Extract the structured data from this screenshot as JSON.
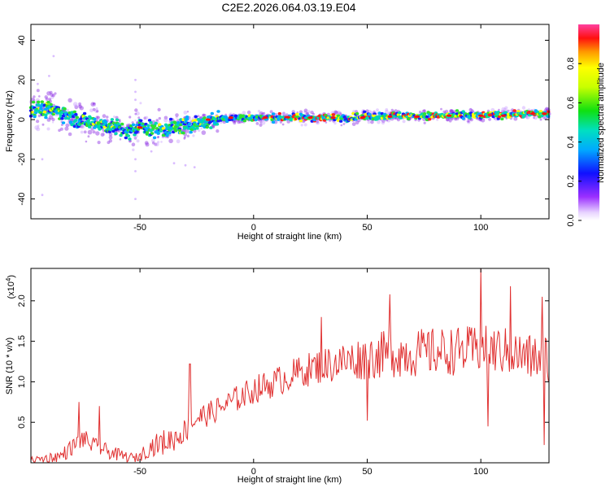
{
  "title": "C2E2.2026.064.03.19.E04",
  "chart_data": [
    {
      "type": "heatmap",
      "name": "spectrogram",
      "xlabel": "Height of straight line (km)",
      "ylabel": "Frequency (Hz)",
      "xlim": [
        -98,
        130
      ],
      "ylim": [
        -50,
        48
      ],
      "xticks": [
        -50,
        0,
        50,
        100
      ],
      "yticks": [
        -40,
        -20,
        0,
        20,
        40
      ],
      "ridge": {
        "x": [
          -98,
          -90,
          -85,
          -80,
          -75,
          -70,
          -65,
          -60,
          -55,
          -52,
          -50,
          -45,
          -40,
          -35,
          -30,
          -25,
          -20,
          -15,
          -10,
          -5,
          0,
          10,
          20,
          30,
          40,
          50,
          60,
          70,
          80,
          90,
          100,
          110,
          120,
          130
        ],
        "y": [
          6,
          5,
          4,
          1,
          -1,
          -1,
          -3,
          -4,
          -7,
          -5,
          -3,
          -5,
          -5,
          -4,
          -3,
          -2,
          -1,
          0.5,
          1,
          1,
          1,
          1,
          1,
          1,
          1,
          1.5,
          2,
          2,
          2,
          2,
          2,
          2.5,
          3,
          3
        ]
      },
      "colorbar": {
        "label": "Normalized spectral amplitude",
        "range": [
          0.0,
          1.0
        ],
        "ticks": [
          0.0,
          0.2,
          0.4,
          0.6,
          0.8
        ],
        "tick_labels": [
          "0.0",
          "0.2",
          "0.4",
          "0.6",
          "0.8"
        ]
      }
    },
    {
      "type": "line",
      "name": "snr",
      "xlabel": "Height of straight line (km)",
      "ylabel": "SNR (10 * v/v)",
      "scale_label": "(x10",
      "scale_exp": "4",
      "scale_close": ")",
      "xlim": [
        -98,
        130
      ],
      "ylim": [
        0,
        2.4
      ],
      "xticks": [
        -50,
        0,
        50,
        100
      ],
      "yticks": [
        0.5,
        1.0,
        1.5,
        2.0
      ],
      "ytick_labels": [
        "0.5",
        "1.0",
        "1.5",
        "2.0"
      ],
      "color": "#e03030",
      "trend": {
        "x": [
          -98,
          -85,
          -75,
          -70,
          -60,
          -52,
          -45,
          -35,
          -30,
          -25,
          -20,
          -10,
          0,
          10,
          20,
          30,
          40,
          50,
          60,
          70,
          80,
          90,
          100,
          110,
          120,
          130
        ],
        "y": [
          0.03,
          0.08,
          0.3,
          0.2,
          0.1,
          0.05,
          0.2,
          0.3,
          0.4,
          0.55,
          0.6,
          0.75,
          0.9,
          1.0,
          1.12,
          1.2,
          1.25,
          1.3,
          1.35,
          1.35,
          1.37,
          1.38,
          1.4,
          1.38,
          1.3,
          1.3
        ]
      },
      "noise": {
        "x": [
          -98,
          -75,
          -52,
          -40,
          -20,
          20,
          60,
          130
        ],
        "y": [
          0.04,
          0.12,
          0.06,
          0.16,
          0.15,
          0.2,
          0.3,
          0.3
        ]
      },
      "peaks": {
        "x": [
          -77,
          -68,
          -28,
          30,
          60,
          100,
          113,
          127
        ],
        "y": [
          0.75,
          0.7,
          1.22,
          1.8,
          2.08,
          2.4,
          2.18,
          2.05
        ]
      },
      "dips": {
        "x": [
          50,
          103,
          128
        ],
        "y": [
          0.52,
          0.45,
          0.22
        ]
      }
    }
  ]
}
